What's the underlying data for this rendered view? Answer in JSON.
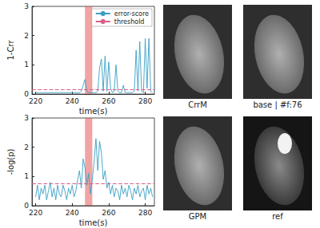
{
  "chart_data": [
    {
      "type": "line",
      "ylabel": "1-Crr",
      "xlabel": "time(s)",
      "xlim": [
        218,
        285
      ],
      "xticks": [
        220,
        240,
        260,
        280
      ],
      "ylim": [
        0,
        3
      ],
      "yticks": [
        0,
        1,
        2,
        3
      ],
      "grid": false,
      "legend": "upper right",
      "shaded_x": [
        247,
        251
      ],
      "series": [
        {
          "name": "error-score",
          "color": "#3a9fc4",
          "x": [
            220,
            221,
            222,
            223,
            224,
            225,
            226,
            227,
            228,
            229,
            230,
            231,
            232,
            233,
            234,
            235,
            236,
            237,
            238,
            239,
            240,
            241,
            242,
            243,
            244,
            245,
            246,
            247,
            248,
            249,
            250,
            251,
            252,
            253,
            254,
            255,
            256,
            257,
            258,
            259,
            260,
            261,
            262,
            263,
            264,
            265,
            266,
            267,
            268,
            269,
            270,
            271,
            272,
            273,
            274,
            275,
            276,
            277,
            278,
            279,
            280,
            281,
            282,
            283,
            284
          ],
          "values": [
            0.05,
            0.05,
            0.05,
            0.05,
            0.05,
            0.05,
            0.05,
            0.05,
            0.05,
            0.05,
            0.05,
            0.05,
            0.05,
            0.05,
            0.05,
            0.05,
            0.05,
            0.05,
            0.05,
            0.05,
            0.05,
            0.05,
            0.05,
            0.05,
            0.05,
            0.1,
            0.3,
            0.5,
            0.1,
            0.05,
            0.05,
            0.05,
            0.05,
            0.05,
            0.1,
            0.9,
            1.2,
            0.1,
            1.3,
            0.1,
            1.1,
            0.2,
            0.05,
            0.1,
            1.0,
            0.1,
            0.05,
            0.05,
            0.3,
            0.05,
            0.05,
            0.05,
            0.05,
            0.05,
            0.1,
            1.5,
            0.1,
            1.8,
            0.1,
            0.05,
            1.9,
            0.2,
            1.9,
            0.1,
            0.05
          ]
        },
        {
          "name": "threshold",
          "color": "#d95f8a",
          "line_style": "dashed",
          "x": [
            218,
            285
          ],
          "values": [
            0.15,
            0.15
          ]
        }
      ]
    },
    {
      "type": "line",
      "ylabel": "-log(p)",
      "xlabel": "time(s)",
      "xlim": [
        218,
        285
      ],
      "xticks": [
        220,
        240,
        260,
        280
      ],
      "ylim": [
        0,
        3
      ],
      "yticks": [
        0,
        1,
        2,
        3
      ],
      "grid": false,
      "shaded_x": [
        247,
        251
      ],
      "series": [
        {
          "color": "#3a9fc4",
          "x": [
            220,
            221,
            222,
            223,
            224,
            225,
            226,
            227,
            228,
            229,
            230,
            231,
            232,
            233,
            234,
            235,
            236,
            237,
            238,
            239,
            240,
            241,
            242,
            243,
            244,
            245,
            246,
            247,
            248,
            249,
            250,
            251,
            252,
            253,
            254,
            255,
            256,
            257,
            258,
            259,
            260,
            261,
            262,
            263,
            264,
            265,
            266,
            267,
            268,
            269,
            270,
            271,
            272,
            273,
            274,
            275,
            276,
            277,
            278,
            279,
            280,
            281,
            282,
            283,
            284
          ],
          "values": [
            0.3,
            0.7,
            0.2,
            0.6,
            0.4,
            0.7,
            0.2,
            0.5,
            0.8,
            0.3,
            0.6,
            0.2,
            0.7,
            0.4,
            0.3,
            0.7,
            0.5,
            0.2,
            0.6,
            0.4,
            0.7,
            0.3,
            0.5,
            0.9,
            1.2,
            0.6,
            1.6,
            1.3,
            0.7,
            1.1,
            0.4,
            0.9,
            1.5,
            2.3,
            1.2,
            2.2,
            1.8,
            0.9,
            1.2,
            0.6,
            0.8,
            0.4,
            0.7,
            0.3,
            0.6,
            0.5,
            0.2,
            0.7,
            0.4,
            0.6,
            0.3,
            0.7,
            0.5,
            0.2,
            0.6,
            0.4,
            0.7,
            0.3,
            0.5,
            0.6,
            0.2,
            0.7,
            0.4,
            0.6,
            0.3
          ]
        },
        {
          "color": "#d95f8a",
          "line_style": "dashed",
          "x": [
            218,
            285
          ],
          "values": [
            0.75,
            0.75
          ]
        }
      ]
    }
  ],
  "images": [
    {
      "label": "CrrM"
    },
    {
      "label": "base | #f:76"
    },
    {
      "label": "GPM"
    },
    {
      "label": "ref"
    }
  ]
}
